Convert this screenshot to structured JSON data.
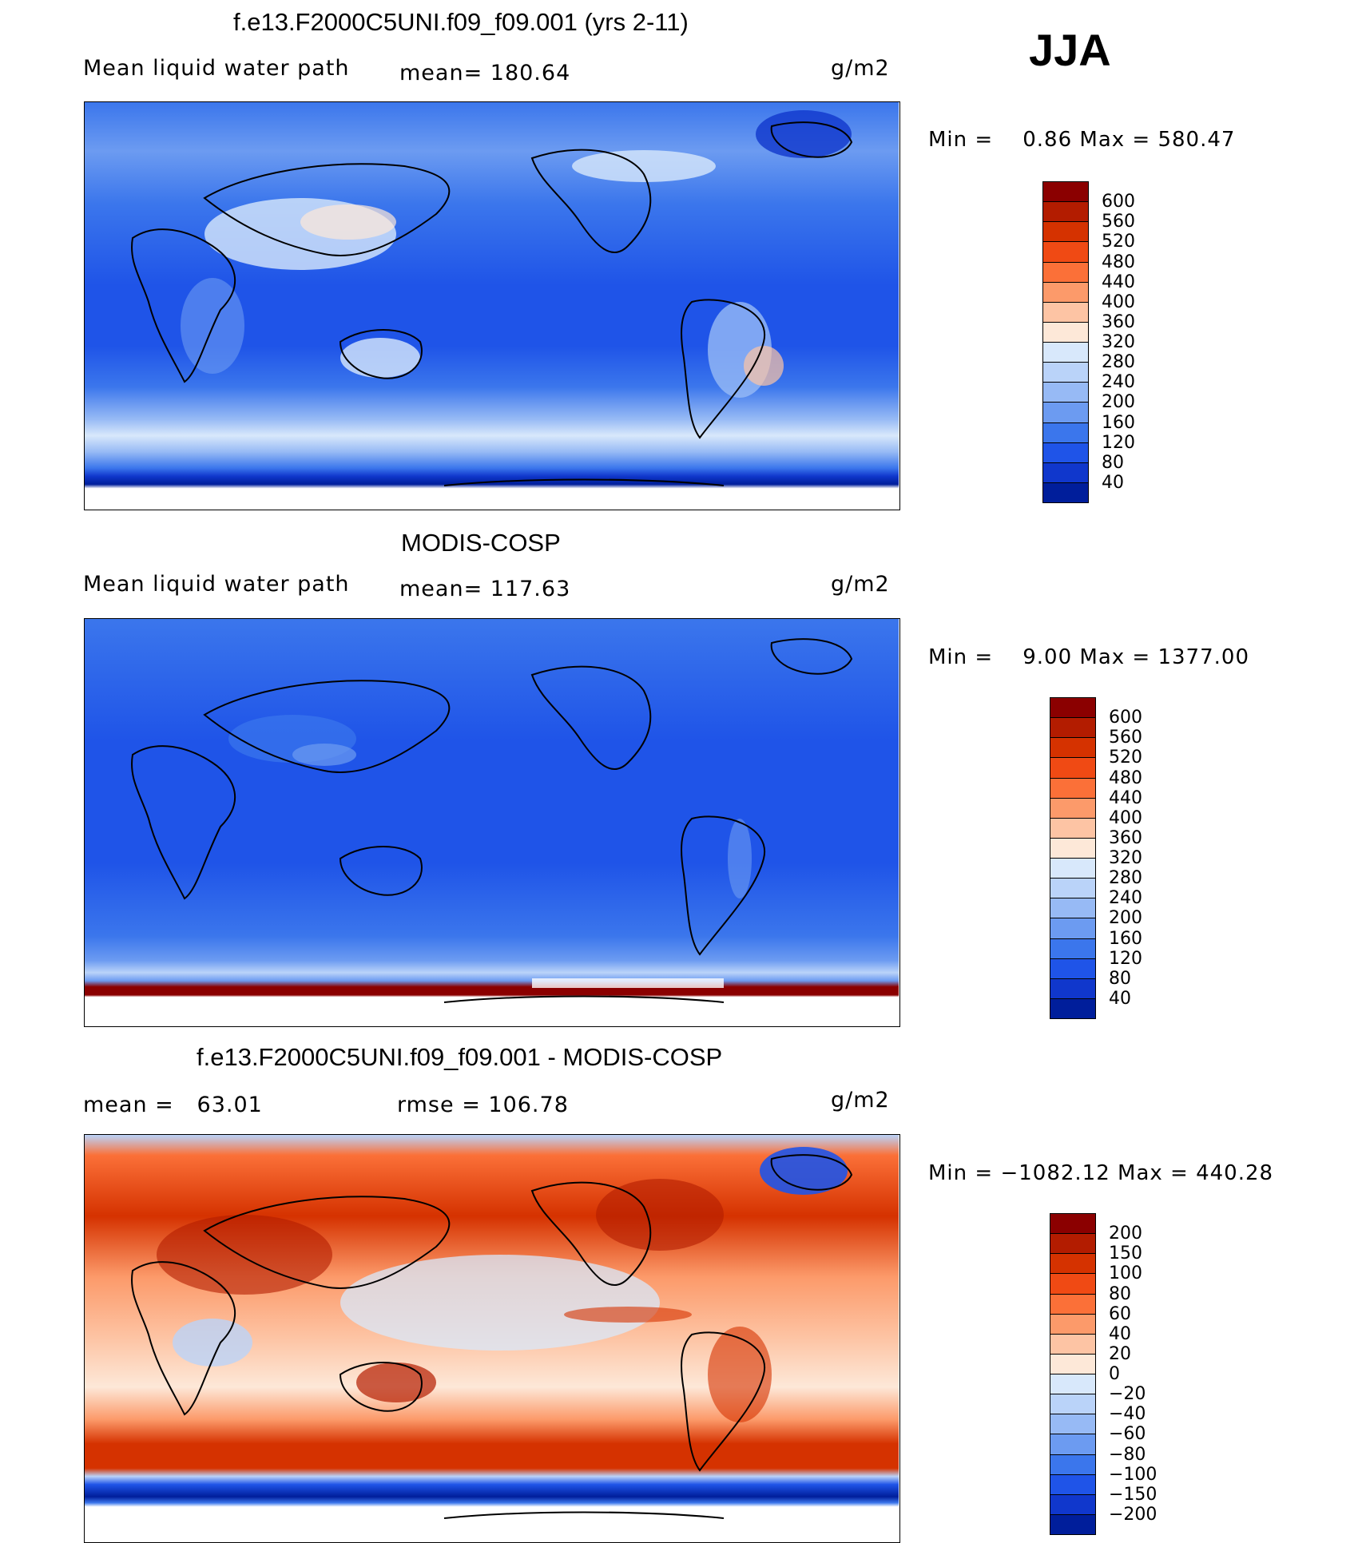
{
  "season": "JJA",
  "units": "g/m2",
  "panels": [
    {
      "title": "f.e13.F2000C5UNI.f09_f09.001 (yrs 2-11)",
      "left_label": "Mean liquid water path",
      "mean_text": "mean= 180.64",
      "units": "g/m2",
      "min_max": "Min =    0.86 Max = 580.47",
      "colorbar_levels": [
        "600",
        "560",
        "520",
        "480",
        "440",
        "400",
        "360",
        "320",
        "280",
        "240",
        "200",
        "160",
        "120",
        "80",
        "40"
      ],
      "colorbar_colors": [
        "#8b0000",
        "#b31c00",
        "#d53200",
        "#f04a14",
        "#fb7038",
        "#fc9a6a",
        "#fdc4a4",
        "#fde8d8",
        "#d8e8fb",
        "#bad3f9",
        "#97baf5",
        "#6c9bf1",
        "#3b76ec",
        "#1f54e8",
        "#1037cc",
        "#001e9b"
      ]
    },
    {
      "title": "MODIS-COSP",
      "left_label": "Mean liquid water path",
      "mean_text": "mean= 117.63",
      "units": "g/m2",
      "min_max": "Min =    9.00 Max = 1377.00",
      "colorbar_levels": [
        "600",
        "560",
        "520",
        "480",
        "440",
        "400",
        "360",
        "320",
        "280",
        "240",
        "200",
        "160",
        "120",
        "80",
        "40"
      ],
      "colorbar_colors": [
        "#8b0000",
        "#b31c00",
        "#d53200",
        "#f04a14",
        "#fb7038",
        "#fc9a6a",
        "#fdc4a4",
        "#fde8d8",
        "#d8e8fb",
        "#bad3f9",
        "#97baf5",
        "#6c9bf1",
        "#3b76ec",
        "#1f54e8",
        "#1037cc",
        "#001e9b"
      ]
    },
    {
      "title": "f.e13.F2000C5UNI.f09_f09.001 - MODIS-COSP",
      "left_label": "mean =   63.01",
      "mean_text": "rmse = 106.78",
      "units": "g/m2",
      "min_max": "Min = −1082.12 Max = 440.28",
      "colorbar_levels": [
        "200",
        "150",
        "100",
        "80",
        "60",
        "40",
        "20",
        "0",
        "−20",
        "−40",
        "−60",
        "−80",
        "−100",
        "−150",
        "−200"
      ],
      "colorbar_colors": [
        "#8b0000",
        "#b31c00",
        "#d53200",
        "#f04a14",
        "#fb7038",
        "#fc9a6a",
        "#fdc4a4",
        "#fde8d8",
        "#d8e8fb",
        "#bad3f9",
        "#97baf5",
        "#6c9bf1",
        "#3b76ec",
        "#1f54e8",
        "#1037cc",
        "#001e9b"
      ]
    }
  ],
  "chart_data": [
    {
      "type": "heatmap",
      "title": "f.e13.F2000C5UNI.f09_f09.001 (yrs 2-11)",
      "variable": "Mean liquid water path",
      "units": "g/m2",
      "mean": 180.64,
      "min": 0.86,
      "max": 580.47,
      "contour_levels": [
        40,
        80,
        120,
        160,
        200,
        240,
        280,
        320,
        360,
        400,
        440,
        480,
        520,
        560,
        600
      ]
    },
    {
      "type": "heatmap",
      "title": "MODIS-COSP",
      "variable": "Mean liquid water path",
      "units": "g/m2",
      "mean": 117.63,
      "min": 9.0,
      "max": 1377.0,
      "contour_levels": [
        40,
        80,
        120,
        160,
        200,
        240,
        280,
        320,
        360,
        400,
        440,
        480,
        520,
        560,
        600
      ]
    },
    {
      "type": "heatmap",
      "title": "f.e13.F2000C5UNI.f09_f09.001 - MODIS-COSP",
      "units": "g/m2",
      "mean": 63.01,
      "rmse": 106.78,
      "min": -1082.12,
      "max": 440.28,
      "contour_levels": [
        -200,
        -150,
        -100,
        -80,
        -60,
        -40,
        -20,
        0,
        20,
        40,
        60,
        80,
        100,
        150,
        200
      ]
    }
  ]
}
